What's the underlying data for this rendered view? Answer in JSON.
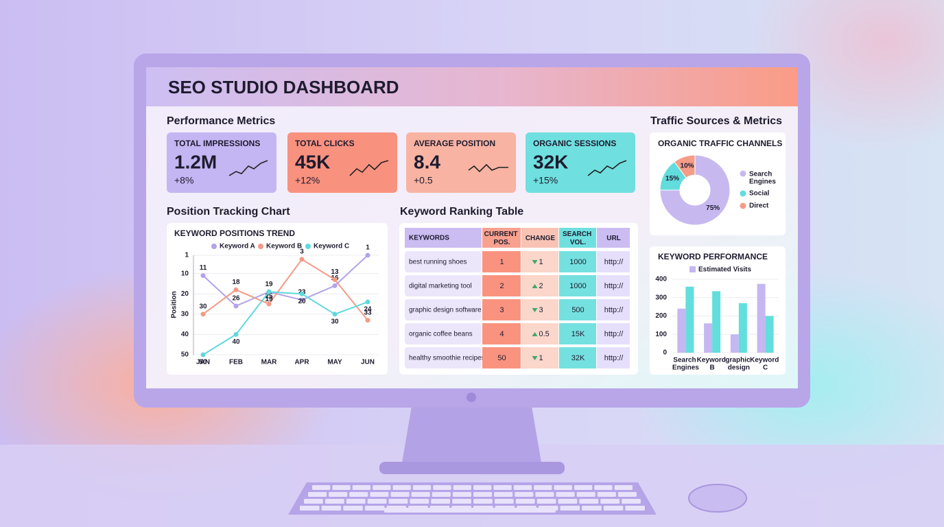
{
  "header": {
    "title": "SEO STUDIO DASHBOARD"
  },
  "sections": {
    "performance": "Performance Metrics",
    "position": "Position Tracking Chart",
    "ranking": "Keyword Ranking Table",
    "traffic": "Traffic Sources & Metrics"
  },
  "metrics": [
    {
      "label": "TOTAL IMPRESSIONS",
      "value": "1.2M",
      "change": "+8%",
      "color": "#c4b6f2"
    },
    {
      "label": "TOTAL CLICKS",
      "value": "45K",
      "change": "+12%",
      "color": "#f9917f"
    },
    {
      "label": "AVERAGE POSITION",
      "value": "8.4",
      "change": "+0.5",
      "color": "#f8b3a3"
    },
    {
      "label": "ORGANIC SESSIONS",
      "value": "32K",
      "change": "+15%",
      "color": "#6fe0df"
    }
  ],
  "table": {
    "columns": [
      "KEYWORDS",
      "CURRENT POS.",
      "CHANGE",
      "SEARCH VOL.",
      "URL"
    ],
    "rows": [
      [
        "best running shoes",
        "1",
        {
          "direction": "down",
          "label": "1"
        },
        "1000",
        "http://"
      ],
      [
        "digital marketing tool",
        "2",
        {
          "direction": "up",
          "label": "2"
        },
        "1000",
        "http://"
      ],
      [
        "graphic design software",
        "3",
        {
          "direction": "down",
          "label": "3"
        },
        "500",
        "http://"
      ],
      [
        "organic coffee beans",
        "4",
        {
          "direction": "up",
          "label": "0.5"
        },
        "15K",
        "http://"
      ],
      [
        "healthy smoothie recipes",
        "50",
        {
          "direction": "down",
          "label": "1"
        },
        "32K",
        "http://"
      ]
    ]
  },
  "chart_data": [
    {
      "type": "line",
      "title": "KEYWORD POSITIONS TREND",
      "y_label": "Position",
      "categories": [
        "JAN",
        "FEB",
        "MAR",
        "APR",
        "MAY",
        "JUN"
      ],
      "series": [
        {
          "name": "Keyword A",
          "color": "#b3a3ea",
          "values": [
            11,
            26,
            19,
            23,
            16,
            1
          ]
        },
        {
          "name": "Keyword B",
          "color": "#f39a86",
          "values": [
            30,
            18,
            25,
            3,
            13,
            33
          ]
        },
        {
          "name": "Keyword C",
          "color": "#5fd9dc",
          "values": [
            50,
            40,
            19,
            20,
            30,
            24
          ]
        }
      ],
      "ylim": [
        50,
        1
      ],
      "yticks": [
        1,
        10,
        20,
        30,
        40,
        50
      ],
      "grid": true
    },
    {
      "type": "pie",
      "title": "ORGANIC TRAFFIC CHANNELS",
      "donut": true,
      "categories": [
        "Search Engines",
        "Social",
        "Direct"
      ],
      "values": [
        75,
        15,
        10
      ],
      "value_labels": [
        "75%",
        "15%",
        "10%"
      ],
      "colors": [
        "#c7b9f0",
        "#62dcdc",
        "#f59c88"
      ]
    },
    {
      "type": "bar",
      "title": "KEYWORD PERFORMANCE",
      "categories": [
        "Search Engines",
        "Keyword B",
        "graphic design",
        "Keyword C"
      ],
      "series": [
        {
          "name": "Estimated Visits",
          "color": "#c5b7f1",
          "values": [
            240,
            160,
            100,
            375
          ]
        },
        {
          "color": "#62dedd",
          "values": [
            360,
            335,
            270,
            200
          ]
        }
      ],
      "ylim": [
        0,
        400
      ],
      "yticks": [
        0,
        100,
        200,
        300,
        400
      ],
      "grid": true
    }
  ]
}
